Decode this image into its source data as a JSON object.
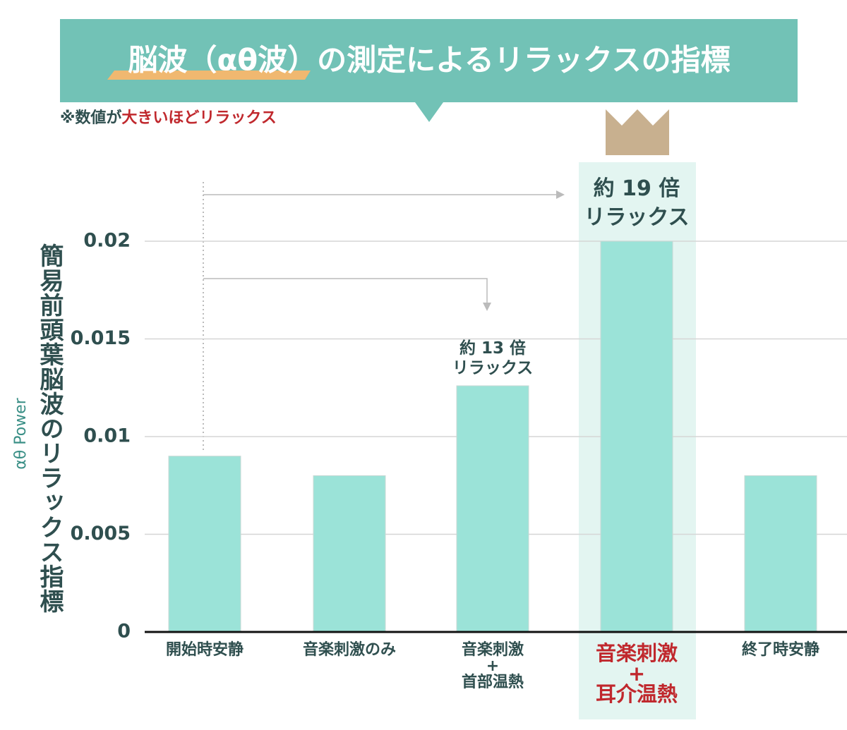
{
  "chart_data": {
    "type": "bar",
    "title": "脳波（αθ波）の測定によるリラックスの指標",
    "note_prefix": "※数値が",
    "note_emphasis": "大きいほどリラックス",
    "y_label": "簡易前頭葉脳波のリラックス指標",
    "y_sublabel": "αθ Power",
    "categories": [
      "開始時安静",
      "音楽刺激のみ",
      "音楽刺激\n+\n首部温熱",
      "音楽刺激\n+\n耳介温熱",
      "終了時安静"
    ],
    "values": [
      0.009,
      0.008,
      0.0126,
      0.02,
      0.008
    ],
    "color": "#9be3d8",
    "highlight": 3,
    "highlight_color": "#e3f5f1",
    "highlight_text_color": "#c0282d",
    "annotations": [
      "約 19 倍\nリラックス",
      "約 13 倍\nリラックス"
    ],
    "ylim": [
      0,
      0.02
    ],
    "yticks": [
      0,
      0.005,
      0.01,
      0.015,
      0.02
    ],
    "grid": true
  }
}
